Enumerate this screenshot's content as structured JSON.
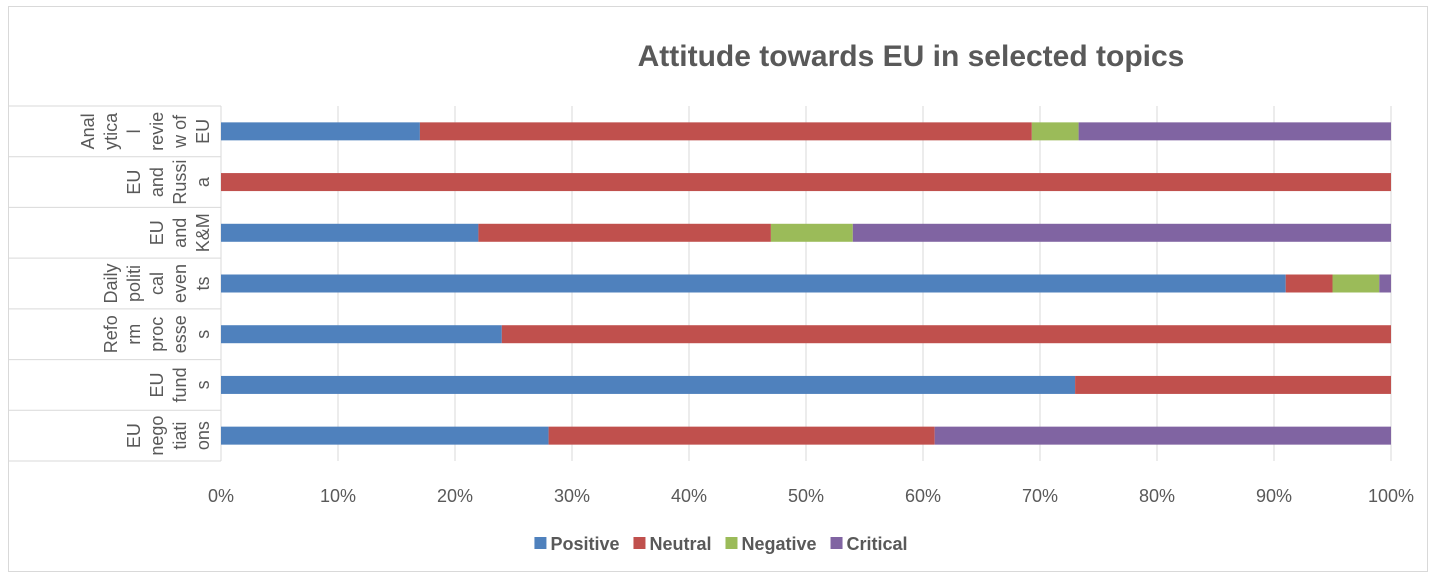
{
  "chart_data": {
    "type": "bar",
    "orientation": "horizontal",
    "stacked": "percent",
    "title": "Attitude towards EU in selected topics",
    "xlabel": "",
    "ylabel": "",
    "xlim": [
      0,
      100
    ],
    "x_ticks": [
      "0%",
      "10%",
      "20%",
      "30%",
      "40%",
      "50%",
      "60%",
      "70%",
      "80%",
      "90%",
      "100%"
    ],
    "grid": "vertical",
    "legend_position": "bottom",
    "categories": [
      {
        "lines": [
          "Anal",
          "ytica",
          "l",
          "revie",
          "w of",
          "EU"
        ]
      },
      {
        "lines": [
          "EU",
          "and",
          "Russi",
          "a"
        ]
      },
      {
        "lines": [
          "EU",
          "and",
          "K&M"
        ]
      },
      {
        "lines": [
          "Daily",
          "politi",
          "cal",
          "even",
          "ts"
        ]
      },
      {
        "lines": [
          "Refo",
          "rm",
          "proc",
          "esse",
          "s"
        ]
      },
      {
        "lines": [
          "EU",
          "fund",
          "s"
        ]
      },
      {
        "lines": [
          "EU",
          "nego",
          "tiati",
          "ons"
        ]
      }
    ],
    "series": [
      {
        "name": "Positive",
        "color": "#4f81bd",
        "values": [
          17,
          0,
          22,
          91,
          24,
          73,
          28
        ]
      },
      {
        "name": "Neutral",
        "color": "#c0504d",
        "values": [
          52.3,
          100,
          25,
          4,
          76,
          27,
          33
        ]
      },
      {
        "name": "Negative",
        "color": "#9bbb59",
        "values": [
          4,
          0,
          7,
          4,
          0,
          0,
          0
        ]
      },
      {
        "name": "Critical",
        "color": "#8064a2",
        "values": [
          26.7,
          0,
          46,
          1,
          0,
          0,
          39
        ]
      }
    ]
  }
}
